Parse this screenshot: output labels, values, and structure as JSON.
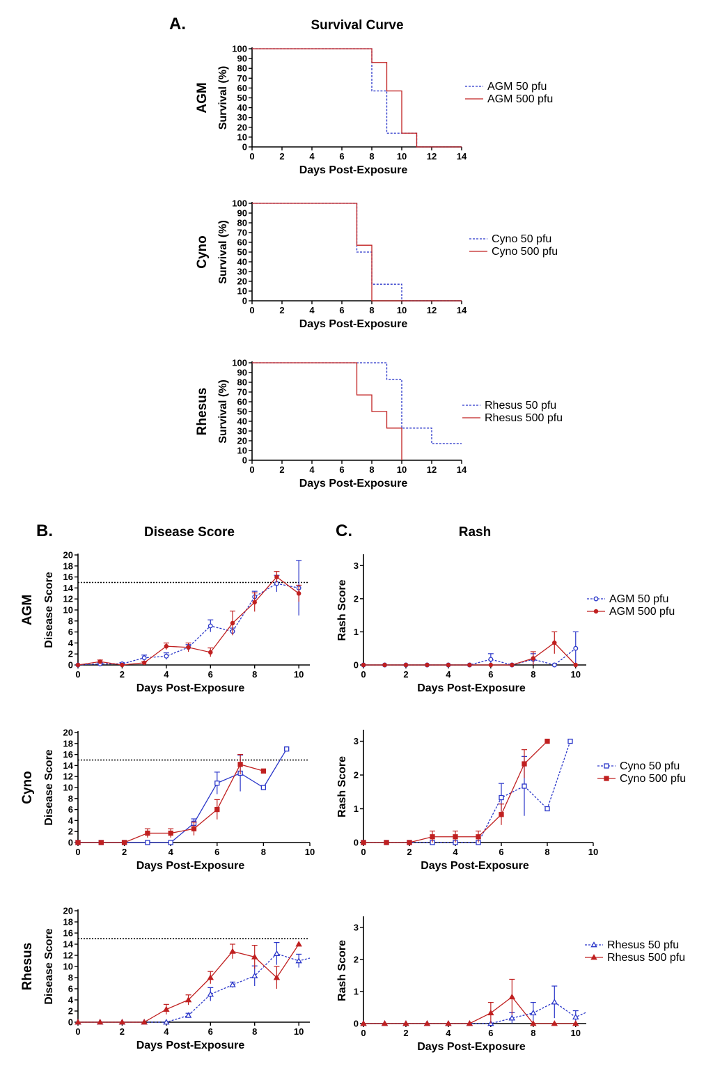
{
  "labels": {
    "panel_a": "A.",
    "panel_b": "B.",
    "panel_c": "C.",
    "survival_title": "Survival Curve",
    "disease_title": "Disease Score",
    "rash_title": "Rash"
  },
  "colors": {
    "series_50": "#2a36c9",
    "series_500": "#c02020"
  },
  "chart_data": [
    {
      "id": "survival-agm",
      "type": "line",
      "step": true,
      "row_label": "AGM",
      "title": "",
      "xlabel": "Days Post-Exposure",
      "ylabel": "Survival (%)",
      "xlim": [
        0,
        14
      ],
      "ylim": [
        0,
        100
      ],
      "xticks": [
        0,
        2,
        4,
        6,
        8,
        10,
        12,
        14
      ],
      "yticks": [
        0,
        10,
        20,
        30,
        40,
        50,
        60,
        70,
        80,
        90,
        100
      ],
      "series": [
        {
          "name": "AGM 50 pfu",
          "dose": "50",
          "dashed": true,
          "x": [
            0,
            8,
            9,
            11,
            14
          ],
          "y": [
            100,
            57,
            14,
            0,
            0
          ]
        },
        {
          "name": "AGM 500 pfu",
          "dose": "500",
          "dashed": false,
          "x": [
            0,
            8,
            9,
            10,
            11,
            14
          ],
          "y": [
            100,
            86,
            57,
            14,
            0,
            0
          ]
        }
      ]
    },
    {
      "id": "survival-cyno",
      "type": "line",
      "step": true,
      "row_label": "Cyno",
      "title": "",
      "xlabel": "Days Post-Exposure",
      "ylabel": "Survival (%)",
      "xlim": [
        0,
        14
      ],
      "ylim": [
        0,
        100
      ],
      "xticks": [
        0,
        2,
        4,
        6,
        8,
        10,
        12,
        14
      ],
      "yticks": [
        0,
        10,
        20,
        30,
        40,
        50,
        60,
        70,
        80,
        90,
        100
      ],
      "series": [
        {
          "name": "Cyno 50 pfu",
          "dose": "50",
          "dashed": true,
          "x": [
            0,
            7,
            8,
            10,
            14
          ],
          "y": [
            100,
            50,
            17,
            0,
            0
          ]
        },
        {
          "name": "Cyno 500 pfu",
          "dose": "500",
          "dashed": false,
          "x": [
            0,
            7,
            8,
            14
          ],
          "y": [
            100,
            57,
            0,
            0
          ]
        }
      ]
    },
    {
      "id": "survival-rhesus",
      "type": "line",
      "step": true,
      "row_label": "Rhesus",
      "title": "",
      "xlabel": "Days Post-Exposure",
      "ylabel": "Survival (%)",
      "xlim": [
        0,
        14
      ],
      "ylim": [
        0,
        100
      ],
      "xticks": [
        0,
        2,
        4,
        6,
        8,
        10,
        12,
        14
      ],
      "yticks": [
        0,
        10,
        20,
        30,
        40,
        50,
        60,
        70,
        80,
        90,
        100
      ],
      "series": [
        {
          "name": "Rhesus 50 pfu",
          "dose": "50",
          "dashed": true,
          "x": [
            0,
            9,
            10,
            12,
            14
          ],
          "y": [
            100,
            83,
            33,
            17,
            17
          ]
        },
        {
          "name": "Rhesus 500 pfu",
          "dose": "500",
          "dashed": false,
          "x": [
            0,
            7,
            8,
            9,
            10
          ],
          "y": [
            100,
            67,
            50,
            33,
            0
          ]
        }
      ]
    },
    {
      "id": "disease-agm",
      "type": "line",
      "step": false,
      "row_label": "AGM",
      "title": "",
      "xlabel": "Days Post-Exposure",
      "ylabel": "Disease Score",
      "xlim": [
        0,
        10.5
      ],
      "ylim": [
        0,
        20
      ],
      "xticks": [
        0,
        2,
        4,
        6,
        8,
        10
      ],
      "yticks": [
        0,
        2,
        4,
        6,
        8,
        10,
        12,
        14,
        16,
        18,
        20
      ],
      "threshold": 15,
      "series": [
        {
          "name": "AGM 50 pfu",
          "dose": "50",
          "dashed": true,
          "marker": "circle-open",
          "x": [
            0,
            1,
            2,
            3,
            4,
            5,
            6,
            7,
            8,
            9,
            10
          ],
          "y": [
            0,
            0.2,
            0.2,
            1.3,
            1.6,
            3.2,
            7.1,
            6.1,
            12.4,
            14.8,
            14
          ],
          "err": [
            0,
            0.2,
            0.2,
            0.5,
            0.6,
            0.5,
            1.1,
            0.6,
            1.0,
            1.5,
            5.0
          ]
        },
        {
          "name": "AGM 500 pfu",
          "dose": "500",
          "dashed": false,
          "marker": "circle",
          "x": [
            0,
            1,
            2,
            3,
            4,
            5,
            6,
            7,
            8,
            9,
            10
          ],
          "y": [
            0,
            0.6,
            0,
            0.4,
            3.4,
            3.2,
            2.3,
            7.6,
            11.4,
            16,
            13
          ],
          "err": [
            0,
            0.3,
            0,
            0.2,
            0.6,
            0.8,
            0.8,
            2.2,
            1.7,
            1.0,
            1.5
          ]
        }
      ]
    },
    {
      "id": "disease-cyno",
      "type": "line",
      "step": false,
      "row_label": "Cyno",
      "title": "",
      "xlabel": "Days Post-Exposure",
      "ylabel": "Disease Score",
      "xlim": [
        0,
        10
      ],
      "ylim": [
        0,
        20
      ],
      "xticks": [
        0,
        2,
        4,
        6,
        8,
        10
      ],
      "yticks": [
        0,
        2,
        4,
        6,
        8,
        10,
        12,
        14,
        16,
        18,
        20
      ],
      "threshold": 15,
      "series": [
        {
          "name": "Cyno 50 pfu",
          "dose": "50",
          "dashed": false,
          "marker": "square-open",
          "x": [
            0,
            1,
            2,
            3,
            4,
            5,
            6,
            7,
            8,
            9
          ],
          "y": [
            0,
            0,
            0,
            0,
            0,
            3.5,
            10.8,
            12.6,
            10,
            17
          ],
          "err": [
            0,
            0,
            0,
            0,
            0,
            0.8,
            2.0,
            3.3,
            0,
            0
          ]
        },
        {
          "name": "Cyno 500 pfu",
          "dose": "500",
          "dashed": false,
          "marker": "square",
          "x": [
            0,
            1,
            2,
            3,
            4,
            5,
            6,
            7,
            8
          ],
          "y": [
            0,
            0,
            0,
            1.7,
            1.7,
            2.5,
            6,
            14.2,
            13
          ],
          "err": [
            0,
            0,
            0,
            0.8,
            0.8,
            1.2,
            1.8,
            1.8,
            0
          ]
        }
      ]
    },
    {
      "id": "disease-rhesus",
      "type": "line",
      "step": false,
      "row_label": "Rhesus",
      "title": "",
      "xlabel": "Days Post-Exposure",
      "ylabel": "Disease Score",
      "xlim": [
        0,
        10.5
      ],
      "ylim": [
        0,
        20
      ],
      "xticks": [
        0,
        2,
        4,
        6,
        8,
        10
      ],
      "yticks": [
        0,
        2,
        4,
        6,
        8,
        10,
        12,
        14,
        16,
        18,
        20
      ],
      "threshold": 15,
      "series": [
        {
          "name": "Rhesus 50 pfu",
          "dose": "50",
          "dashed": true,
          "marker": "triangle-open",
          "x": [
            0,
            1,
            2,
            3,
            4,
            5,
            6,
            7,
            8,
            9,
            10,
            10.5
          ],
          "y": [
            0,
            0,
            0,
            0,
            0,
            1.2,
            5,
            6.7,
            8.3,
            12.3,
            11,
            11.5
          ],
          "err": [
            0,
            0,
            0,
            0,
            0,
            0.4,
            1.2,
            0.5,
            1.8,
            2.0,
            1.2,
            0
          ]
        },
        {
          "name": "Rhesus 500 pfu",
          "dose": "500",
          "dashed": false,
          "marker": "triangle",
          "x": [
            0,
            1,
            2,
            3,
            4,
            5,
            6,
            7,
            8,
            9,
            10
          ],
          "y": [
            0,
            0,
            0,
            0,
            2.3,
            4,
            8,
            12.7,
            11.7,
            8,
            14
          ],
          "err": [
            0,
            0,
            0,
            0,
            0.9,
            0.9,
            1.1,
            1.3,
            2.1,
            2.0,
            0
          ]
        }
      ]
    },
    {
      "id": "rash-agm",
      "type": "line",
      "step": false,
      "row_label": "",
      "title": "",
      "xlabel": "Days Post-Exposure",
      "ylabel": "Rash  Score",
      "xlim": [
        0,
        10.5
      ],
      "ylim": [
        0,
        3.3
      ],
      "xticks": [
        0,
        2,
        4,
        6,
        8,
        10
      ],
      "yticks": [
        0,
        1,
        2,
        3
      ],
      "series": [
        {
          "name": "AGM 50 pfu",
          "dose": "50",
          "dashed": true,
          "marker": "circle-open",
          "x": [
            0,
            1,
            2,
            3,
            4,
            5,
            6,
            7,
            8,
            9,
            10
          ],
          "y": [
            0,
            0,
            0,
            0,
            0,
            0,
            0.17,
            0,
            0.17,
            0,
            0.5
          ],
          "err": [
            0,
            0,
            0,
            0,
            0,
            0,
            0.17,
            0,
            0.17,
            0,
            0.5
          ]
        },
        {
          "name": "AGM 500 pfu",
          "dose": "500",
          "dashed": false,
          "marker": "circle",
          "x": [
            0,
            1,
            2,
            3,
            4,
            5,
            6,
            7,
            8,
            9,
            10
          ],
          "y": [
            0,
            0,
            0,
            0,
            0,
            0,
            0,
            0,
            0.2,
            0.67,
            0
          ],
          "err": [
            0,
            0,
            0,
            0,
            0,
            0,
            0,
            0,
            0.2,
            0.33,
            0
          ]
        }
      ]
    },
    {
      "id": "rash-cyno",
      "type": "line",
      "step": false,
      "row_label": "",
      "title": "",
      "xlabel": "Days Post-Exposure",
      "ylabel": "Rash  Score",
      "xlim": [
        0,
        10
      ],
      "ylim": [
        0,
        3.3
      ],
      "xticks": [
        0,
        2,
        4,
        6,
        8,
        10
      ],
      "yticks": [
        0,
        1,
        2,
        3
      ],
      "series": [
        {
          "name": "Cyno 50 pfu",
          "dose": "50",
          "dashed": true,
          "marker": "square-open",
          "x": [
            0,
            1,
            2,
            3,
            4,
            5,
            6,
            7,
            8,
            9
          ],
          "y": [
            0,
            0,
            0,
            0,
            0,
            0,
            1.33,
            1.67,
            1,
            3
          ],
          "err": [
            0,
            0,
            0,
            0,
            0,
            0,
            0.42,
            0.88,
            0,
            0
          ]
        },
        {
          "name": "Cyno 500 pfu",
          "dose": "500",
          "dashed": false,
          "marker": "square",
          "x": [
            0,
            1,
            2,
            3,
            4,
            5,
            6,
            7,
            8
          ],
          "y": [
            0,
            0,
            0,
            0.17,
            0.17,
            0.17,
            0.83,
            2.33,
            3
          ],
          "err": [
            0,
            0,
            0,
            0.17,
            0.17,
            0.17,
            0.31,
            0.42,
            0
          ]
        }
      ]
    },
    {
      "id": "rash-rhesus",
      "type": "line",
      "step": false,
      "row_label": "",
      "title": "",
      "xlabel": "Days Post-Exposure",
      "ylabel": "Rash  Score",
      "xlim": [
        0,
        10.5
      ],
      "ylim": [
        0,
        3.3
      ],
      "xticks": [
        0,
        2,
        4,
        6,
        8,
        10
      ],
      "yticks": [
        0,
        1,
        2,
        3
      ],
      "series": [
        {
          "name": "Rhesus 50 pfu",
          "dose": "50",
          "dashed": true,
          "marker": "triangle-open",
          "x": [
            0,
            1,
            2,
            3,
            4,
            5,
            6,
            7,
            8,
            9,
            10,
            10.5
          ],
          "y": [
            0,
            0,
            0,
            0,
            0,
            0,
            0,
            0.17,
            0.33,
            0.67,
            0.2,
            0.35
          ],
          "err": [
            0,
            0,
            0,
            0,
            0,
            0,
            0,
            0.17,
            0.33,
            0.5,
            0.2,
            0
          ]
        },
        {
          "name": "Rhesus 500 pfu",
          "dose": "500",
          "dashed": false,
          "marker": "triangle",
          "x": [
            0,
            1,
            2,
            3,
            4,
            5,
            6,
            7,
            8,
            9,
            10
          ],
          "y": [
            0,
            0,
            0,
            0,
            0,
            0,
            0.33,
            0.83,
            0,
            0,
            0
          ],
          "err": [
            0,
            0,
            0,
            0,
            0,
            0,
            0.33,
            0.55,
            0,
            0,
            0
          ]
        }
      ]
    }
  ]
}
